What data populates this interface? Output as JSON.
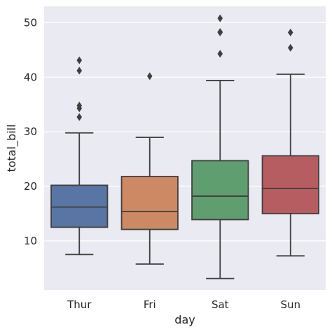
{
  "chart_data": {
    "type": "boxplot",
    "xlabel": "day",
    "ylabel": "total_bill",
    "categories": [
      "Thur",
      "Fri",
      "Sat",
      "Sun"
    ],
    "ylim": [
      1,
      53
    ],
    "yticks": [
      10,
      20,
      30,
      40,
      50
    ],
    "grid": true,
    "background_color": "#eaeaf2",
    "box_edge_color": "#3f3f3f",
    "series": [
      {
        "category": "Thur",
        "color": "#5975a4",
        "whisker_low": 7.5,
        "q1": 12.5,
        "median": 16.2,
        "q3": 20.2,
        "whisker_high": 29.8,
        "outliers": [
          32.7,
          34.3,
          34.8,
          41.2,
          43.1
        ]
      },
      {
        "category": "Fri",
        "color": "#cc8963",
        "whisker_low": 5.75,
        "q1": 12.1,
        "median": 15.4,
        "q3": 21.8,
        "whisker_high": 28.97,
        "outliers": [
          40.2
        ]
      },
      {
        "category": "Sat",
        "color": "#5f9e6e",
        "whisker_low": 3.1,
        "q1": 13.9,
        "median": 18.2,
        "q3": 24.7,
        "whisker_high": 39.4,
        "outliers": [
          44.3,
          48.2,
          48.3,
          50.8
        ]
      },
      {
        "category": "Sun",
        "color": "#b55d60",
        "whisker_low": 7.25,
        "q1": 15.0,
        "median": 19.6,
        "q3": 25.6,
        "whisker_high": 40.55,
        "outliers": [
          45.4,
          48.2
        ]
      }
    ]
  }
}
